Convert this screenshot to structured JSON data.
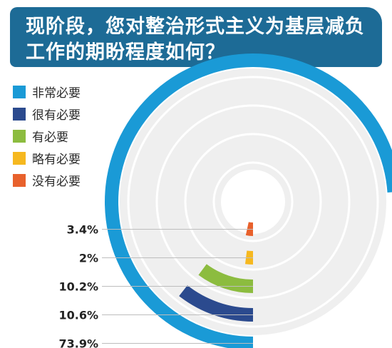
{
  "title": {
    "line1": "现阶段，您对整治形式主义为基层减负",
    "line2": "工作的期盼程度如何？"
  },
  "colors": {
    "banner": "#1d6b96",
    "track": "#efefef",
    "leader": "#bdbdbd"
  },
  "chart_data": {
    "type": "radial-bar",
    "title": "现阶段，您对整治形式主义为基层减负工作的期盼程度如何？",
    "legend_position": "top-left",
    "categories": [
      "非常必要",
      "很有必要",
      "有必要",
      "略有必要",
      "没有必要"
    ],
    "values": [
      73.9,
      10.6,
      10.2,
      2,
      3.4
    ],
    "labels": [
      "73.9%",
      "10.6%",
      "10.2%",
      "2%",
      "3.4%"
    ],
    "colors": [
      "#1a9ad6",
      "#2b4a8e",
      "#8cbc3f",
      "#f6b81f",
      "#e8612c"
    ],
    "unit": "%"
  }
}
